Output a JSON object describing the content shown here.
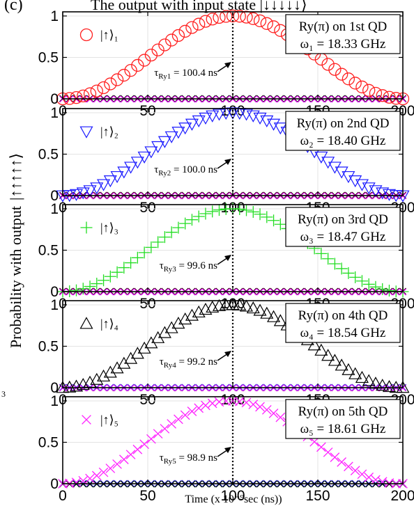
{
  "figure": {
    "panel_label": "(c)",
    "header_text": "The output with input state |↓↓↓↓↓⟩",
    "ylabel": "Probability with output",
    "ylabel_state": "|↑↑↑↑↑⟩",
    "xlabel": "Time (x 10⁻⁹sec (ns))",
    "side_text": "3"
  },
  "chart_data": [
    {
      "type": "scatter",
      "subplot": 1,
      "marker": "circle",
      "color": "#ff2020",
      "legend": "|↑⟩₁",
      "title_line1": "Ry(π) on 1st QD",
      "title_line2": "ω₁ = 18.33 GHz",
      "annotation": "τ",
      "annotation_sub": "Ry1",
      "annotation_val": " = 100.4 ns",
      "tau_ns": 100.4,
      "freq_ghz": 18.33,
      "x_ticks": [
        0,
        50,
        100,
        150,
        200
      ],
      "y_ticks": [
        0,
        0.5,
        1
      ],
      "xlim": [
        0,
        200
      ],
      "ylim": [
        0,
        1.05
      ],
      "series": [
        {
          "name": "|↑⟩₁",
          "function": "sin^2(pi*t/(2*tau))",
          "peak": 1.0,
          "color": "#ff2020"
        },
        {
          "function": "zero",
          "color": "#00b000"
        },
        {
          "function": "zero",
          "color": "#2040ff"
        },
        {
          "function": "zero",
          "color": "#000000"
        },
        {
          "function": "zero",
          "color": "#ff00ff"
        }
      ]
    },
    {
      "type": "scatter",
      "subplot": 2,
      "marker": "triangle-down",
      "color": "#1a1aff",
      "legend": "|↑⟩₂",
      "title_line1": "Ry(π) on 2nd QD",
      "title_line2": "ω₂ = 18.40 GHz",
      "annotation": "τ",
      "annotation_sub": "Ry2",
      "annotation_val": " = 100.0 ns",
      "tau_ns": 100.0,
      "freq_ghz": 18.4,
      "x_ticks": [
        0,
        50,
        100,
        150,
        200
      ],
      "y_ticks": [
        0,
        0.5,
        1
      ],
      "xlim": [
        0,
        200
      ],
      "ylim": [
        0,
        1.05
      ],
      "series": [
        {
          "name": "|↑⟩₂",
          "function": "sin^2(pi*t/(2*tau))",
          "peak": 1.0,
          "color": "#1a1aff"
        },
        {
          "function": "zero",
          "color": "#ff2020"
        },
        {
          "function": "zero",
          "color": "#00b000"
        },
        {
          "function": "zero",
          "color": "#000000"
        },
        {
          "function": "zero",
          "color": "#ff00ff"
        }
      ]
    },
    {
      "type": "scatter",
      "subplot": 3,
      "marker": "plus",
      "color": "#22dd22",
      "legend": "|↑⟩₃",
      "title_line1": "Ry(π) on 3rd QD",
      "title_line2": "ω₃ = 18.47 GHz",
      "annotation": "τ",
      "annotation_sub": "Ry3",
      "annotation_val": " = 99.6 ns",
      "tau_ns": 99.6,
      "freq_ghz": 18.47,
      "x_ticks": [
        0,
        50,
        100,
        150,
        200
      ],
      "y_ticks": [
        0,
        0.5,
        1
      ],
      "xlim": [
        0,
        200
      ],
      "ylim": [
        0,
        1.05
      ],
      "series": [
        {
          "name": "|↑⟩₃",
          "function": "sin^2(pi*t/(2*tau))",
          "peak": 1.0,
          "color": "#22dd22"
        },
        {
          "function": "zero",
          "color": "#ff2020"
        },
        {
          "function": "zero",
          "color": "#2040ff"
        },
        {
          "function": "zero",
          "color": "#000000"
        },
        {
          "function": "zero",
          "color": "#ff00ff"
        }
      ]
    },
    {
      "type": "scatter",
      "subplot": 4,
      "marker": "triangle-up",
      "color": "#000000",
      "legend": "|↑⟩₄",
      "title_line1": "Ry(π) on 4th QD",
      "title_line2": "ω₄ = 18.54 GHz",
      "annotation": "τ",
      "annotation_sub": "Ry4",
      "annotation_val": " = 99.2 ns",
      "tau_ns": 99.2,
      "freq_ghz": 18.54,
      "x_ticks": [
        0,
        50,
        100,
        150,
        200
      ],
      "y_ticks": [
        0,
        0.5,
        1
      ],
      "xlim": [
        0,
        200
      ],
      "ylim": [
        0,
        1.05
      ],
      "series": [
        {
          "name": "|↑⟩₄",
          "function": "sin^2(pi*t/(2*tau))",
          "peak": 1.0,
          "color": "#000000"
        },
        {
          "function": "zero",
          "color": "#ff2020"
        },
        {
          "function": "zero",
          "color": "#00b000"
        },
        {
          "function": "zero",
          "color": "#2040ff"
        },
        {
          "function": "zero",
          "color": "#ff00ff"
        }
      ]
    },
    {
      "type": "scatter",
      "subplot": 5,
      "marker": "cross",
      "color": "#ff22ff",
      "legend": "|↑⟩₅",
      "title_line1": "Ry(π) on 5th QD",
      "title_line2": "ω₅ = 18.61 GHz",
      "annotation": "τ",
      "annotation_sub": "Ry5",
      "annotation_val": " = 98.9 ns",
      "tau_ns": 98.9,
      "freq_ghz": 18.61,
      "x_ticks": [
        0,
        50,
        100,
        150,
        200
      ],
      "y_ticks": [
        0,
        0.5,
        1
      ],
      "xlim": [
        0,
        200
      ],
      "ylim": [
        0,
        1.05
      ],
      "series": [
        {
          "name": "|↑⟩₅",
          "function": "sin^2(pi*t/(2*tau))",
          "peak": 1.0,
          "color": "#ff22ff"
        },
        {
          "function": "zero",
          "color": "#ff2020"
        },
        {
          "function": "zero",
          "color": "#00b000"
        },
        {
          "function": "zero",
          "color": "#2040ff"
        },
        {
          "function": "zero",
          "color": "#000000"
        }
      ]
    }
  ]
}
